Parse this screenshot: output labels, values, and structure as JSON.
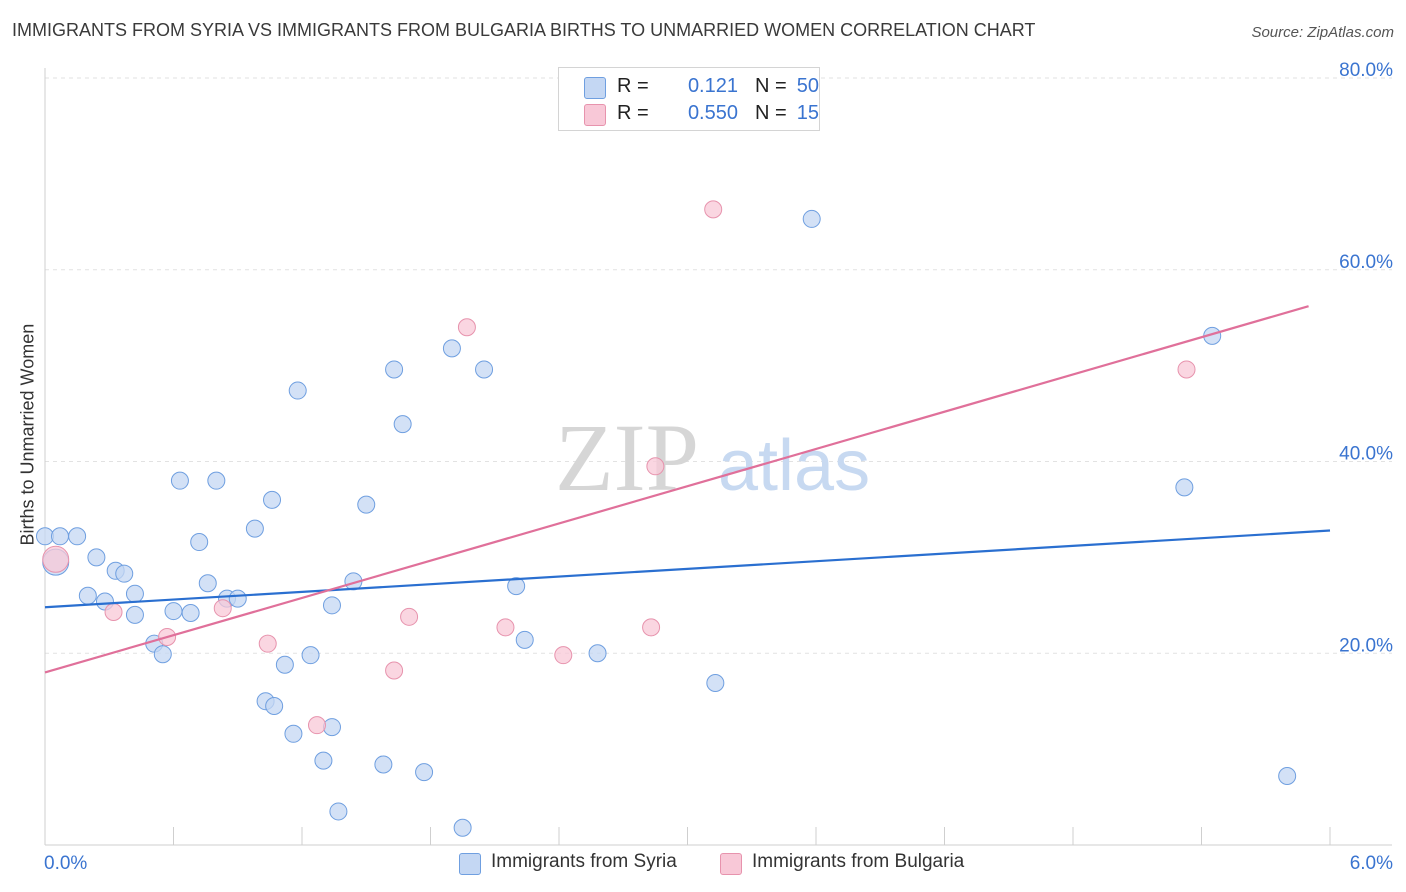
{
  "chart_data": {
    "type": "scatter",
    "title": "IMMIGRANTS FROM SYRIA VS IMMIGRANTS FROM BULGARIA BIRTHS TO UNMARRIED WOMEN CORRELATION CHART",
    "source": "Source: ZipAtlas.com",
    "xlabel": "",
    "ylabel": "Births to Unmarried Women",
    "xlim": [
      0,
      6
    ],
    "ylim": [
      0,
      80
    ],
    "x_tick_labels": {
      "min": "0.0%",
      "max": "6.0%"
    },
    "y_ticks": [
      {
        "value": 20,
        "label": "20.0%"
      },
      {
        "value": 40,
        "label": "40.0%"
      },
      {
        "value": 60,
        "label": "60.0%"
      },
      {
        "value": 80,
        "label": "80.0%"
      }
    ],
    "watermark": {
      "zip": "ZIP",
      "atlas": "atlas"
    },
    "legend": [
      {
        "r_label": "R =",
        "r_value": "0.121",
        "n_label": "N =",
        "n_value": "50"
      },
      {
        "r_label": "R =",
        "r_value": "0.550",
        "n_label": "N =",
        "n_value": "15"
      }
    ],
    "series": [
      {
        "name": "Immigrants from Syria",
        "color": "#6f9fe0",
        "fill": "#c4d7f3",
        "trend": {
          "x0": 0,
          "y0": 24.8,
          "x1": 6,
          "y1": 32.8,
          "color": "#2a6fd0"
        },
        "points": [
          [
            0.0,
            32.2
          ],
          [
            0.07,
            32.2
          ],
          [
            0.15,
            32.2
          ],
          [
            0.24,
            30.0
          ],
          [
            0.33,
            28.6
          ],
          [
            0.37,
            28.3
          ],
          [
            0.2,
            26.0
          ],
          [
            0.28,
            25.4
          ],
          [
            0.42,
            26.2
          ],
          [
            0.6,
            24.4
          ],
          [
            0.42,
            24.0
          ],
          [
            0.68,
            24.2
          ],
          [
            0.51,
            21.0
          ],
          [
            0.55,
            19.9
          ],
          [
            0.63,
            38.0
          ],
          [
            0.8,
            38.0
          ],
          [
            0.72,
            31.6
          ],
          [
            0.76,
            27.3
          ],
          [
            0.85,
            25.7
          ],
          [
            0.9,
            25.7
          ],
          [
            0.98,
            33.0
          ],
          [
            1.06,
            36.0
          ],
          [
            1.18,
            47.4
          ],
          [
            1.03,
            15.0
          ],
          [
            1.07,
            14.5
          ],
          [
            1.12,
            18.8
          ],
          [
            1.16,
            11.6
          ],
          [
            1.24,
            19.8
          ],
          [
            1.3,
            8.8
          ],
          [
            1.34,
            12.3
          ],
          [
            1.34,
            25.0
          ],
          [
            1.44,
            27.5
          ],
          [
            1.5,
            35.5
          ],
          [
            1.37,
            3.5
          ],
          [
            1.63,
            49.6
          ],
          [
            1.67,
            43.9
          ],
          [
            1.58,
            8.4
          ],
          [
            1.77,
            7.6
          ],
          [
            1.9,
            51.8
          ],
          [
            1.95,
            1.8
          ],
          [
            2.05,
            49.6
          ],
          [
            2.2,
            27.0
          ],
          [
            2.24,
            21.4
          ],
          [
            2.58,
            20.0
          ],
          [
            3.13,
            16.9
          ],
          [
            3.58,
            65.3
          ],
          [
            5.32,
            37.3
          ],
          [
            5.45,
            53.1
          ],
          [
            5.8,
            7.2
          ],
          [
            0.05,
            29.5
          ]
        ]
      },
      {
        "name": "Immigrants from Bulgaria",
        "color": "#e793ad",
        "fill": "#f8c8d7",
        "trend": {
          "x0": 0,
          "y0": 18.0,
          "x1": 5.9,
          "y1": 56.2,
          "color": "#e0709a"
        },
        "points": [
          [
            0.05,
            29.8
          ],
          [
            0.32,
            24.3
          ],
          [
            0.57,
            21.7
          ],
          [
            0.83,
            24.7
          ],
          [
            1.04,
            21.0
          ],
          [
            1.27,
            12.5
          ],
          [
            1.63,
            18.2
          ],
          [
            1.7,
            23.8
          ],
          [
            1.97,
            54.0
          ],
          [
            2.15,
            22.7
          ],
          [
            2.42,
            19.8
          ],
          [
            2.83,
            22.7
          ],
          [
            2.85,
            39.5
          ],
          [
            3.12,
            66.3
          ],
          [
            5.33,
            49.6
          ]
        ]
      }
    ]
  }
}
